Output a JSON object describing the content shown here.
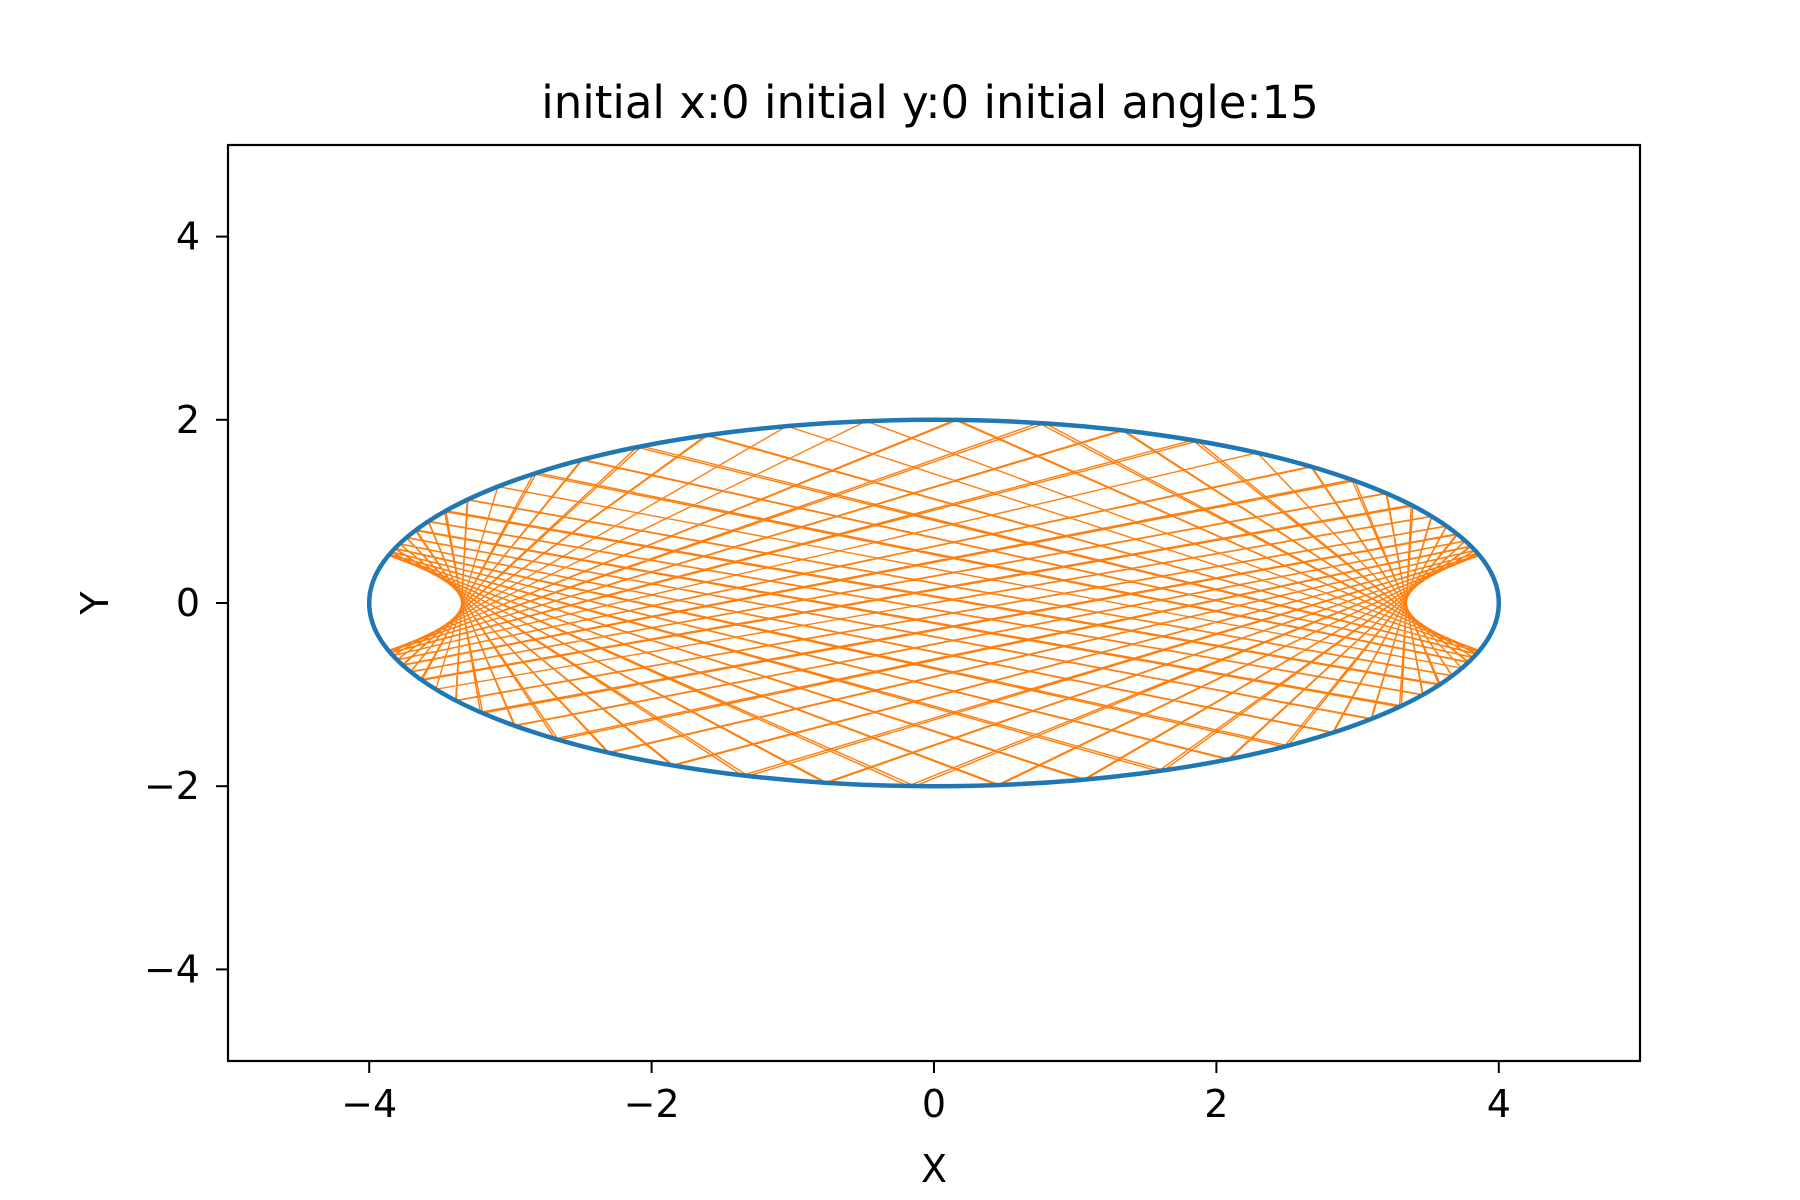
{
  "chart_data": {
    "type": "line",
    "title": "initial x:0  initial y:0 initial angle:15",
    "xlabel": "X",
    "ylabel": "Y",
    "xlim": [
      -5,
      5
    ],
    "ylim": [
      -5,
      5
    ],
    "xticks": [
      -4,
      -2,
      0,
      2,
      4
    ],
    "yticks": [
      -4,
      -2,
      0,
      2,
      4
    ],
    "xtick_labels": [
      "−4",
      "−2",
      "0",
      "2",
      "4"
    ],
    "ytick_labels": [
      "−4",
      "−2",
      "0",
      "2",
      "4"
    ],
    "grid": false,
    "ellipse": {
      "a": 4,
      "b": 2,
      "color": "#1f77b4"
    },
    "trajectory": {
      "color": "#ff7f0e",
      "start": [
        0,
        0
      ],
      "initial_angle_deg": 15,
      "bounces": 130
    }
  }
}
